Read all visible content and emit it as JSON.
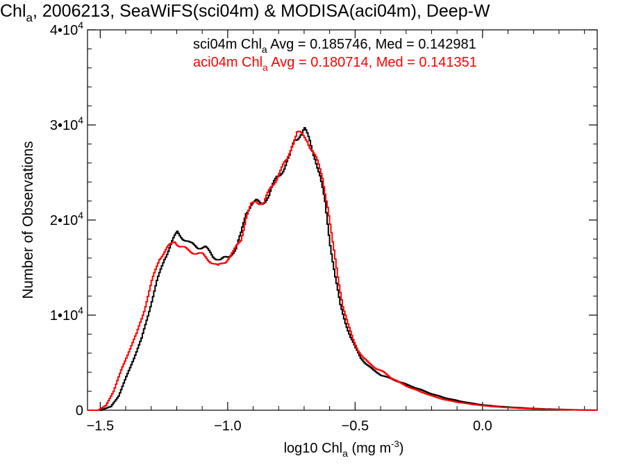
{
  "chart_data": {
    "type": "line",
    "title": {
      "main": "Chl",
      "sub": "a",
      "rest": ", 2006213, SeaWiFS(sci04m) & MODISA(aci04m), Deep-W"
    },
    "xlabel": {
      "main": "log10 Chl",
      "sub": "a",
      "rest": " (mg m",
      "sup": "-3",
      "tail": ")"
    },
    "ylabel": "Number of Observations",
    "xlim": [
      -1.55,
      0.45
    ],
    "ylim": [
      0,
      40000
    ],
    "x_ticks": [
      {
        "value": -1.5,
        "label": "−1.5"
      },
      {
        "value": -1.0,
        "label": "−1.0"
      },
      {
        "value": -0.5,
        "label": "−0.5"
      },
      {
        "value": 0.0,
        "label": "0.0"
      }
    ],
    "y_ticks": [
      {
        "value": 0,
        "mant": "0",
        "exp": ""
      },
      {
        "value": 10000,
        "mant": "1•10",
        "exp": "4"
      },
      {
        "value": 20000,
        "mant": "2•10",
        "exp": "4"
      },
      {
        "value": 30000,
        "mant": "3•10",
        "exp": "4"
      },
      {
        "value": 40000,
        "mant": "4•10",
        "exp": "4"
      }
    ],
    "annotations": [
      {
        "pre": "sci04m Chl",
        "sub": "a",
        "post": " Avg = 0.185746, Med = 0.142981",
        "color": "#000000"
      },
      {
        "pre": "aci04m Chl",
        "sub": "a",
        "post": " Avg = 0.180714, Med = 0.141351",
        "color": "#ff0000"
      }
    ],
    "series": [
      {
        "color": "#000000",
        "points": [
          [
            -1.55,
            0
          ],
          [
            -1.5,
            0
          ],
          [
            -1.46,
            400
          ],
          [
            -1.43,
            1500
          ],
          [
            -1.4,
            3500
          ],
          [
            -1.37,
            5500
          ],
          [
            -1.34,
            7500
          ],
          [
            -1.31,
            10500
          ],
          [
            -1.28,
            13500
          ],
          [
            -1.25,
            16000
          ],
          [
            -1.22,
            17700
          ],
          [
            -1.2,
            18700
          ],
          [
            -1.18,
            18200
          ],
          [
            -1.15,
            17500
          ],
          [
            -1.12,
            17200
          ],
          [
            -1.09,
            17100
          ],
          [
            -1.06,
            16200
          ],
          [
            -1.03,
            15800
          ],
          [
            -1.0,
            16100
          ],
          [
            -0.97,
            17000
          ],
          [
            -0.95,
            18500
          ],
          [
            -0.93,
            20800
          ],
          [
            -0.91,
            21700
          ],
          [
            -0.89,
            21900
          ],
          [
            -0.87,
            21700
          ],
          [
            -0.84,
            22600
          ],
          [
            -0.81,
            24500
          ],
          [
            -0.78,
            25500
          ],
          [
            -0.76,
            26500
          ],
          [
            -0.74,
            28500
          ],
          [
            -0.72,
            29000
          ],
          [
            -0.7,
            29400
          ],
          [
            -0.68,
            28300
          ],
          [
            -0.66,
            26700
          ],
          [
            -0.64,
            24500
          ],
          [
            -0.62,
            21800
          ],
          [
            -0.6,
            17500
          ],
          [
            -0.58,
            14000
          ],
          [
            -0.56,
            11000
          ],
          [
            -0.54,
            9200
          ],
          [
            -0.52,
            7700
          ],
          [
            -0.5,
            6500
          ],
          [
            -0.48,
            5500
          ],
          [
            -0.46,
            4900
          ],
          [
            -0.43,
            4200
          ],
          [
            -0.4,
            3700
          ],
          [
            -0.36,
            3300
          ],
          [
            -0.32,
            2900
          ],
          [
            -0.28,
            2500
          ],
          [
            -0.24,
            2100
          ],
          [
            -0.2,
            1700
          ],
          [
            -0.15,
            1300
          ],
          [
            -0.1,
            1000
          ],
          [
            -0.05,
            750
          ],
          [
            0.0,
            550
          ],
          [
            0.05,
            420
          ],
          [
            0.1,
            330
          ],
          [
            0.15,
            250
          ],
          [
            0.2,
            180
          ],
          [
            0.25,
            130
          ],
          [
            0.3,
            90
          ],
          [
            0.35,
            50
          ],
          [
            0.4,
            20
          ],
          [
            0.45,
            0
          ]
        ]
      },
      {
        "color": "#ff0000",
        "points": [
          [
            -1.55,
            0
          ],
          [
            -1.51,
            0
          ],
          [
            -1.48,
            500
          ],
          [
            -1.45,
            2000
          ],
          [
            -1.42,
            4200
          ],
          [
            -1.39,
            6200
          ],
          [
            -1.36,
            8000
          ],
          [
            -1.33,
            10500
          ],
          [
            -1.3,
            13500
          ],
          [
            -1.27,
            16000
          ],
          [
            -1.24,
            17000
          ],
          [
            -1.21,
            17800
          ],
          [
            -1.19,
            17300
          ],
          [
            -1.16,
            16800
          ],
          [
            -1.13,
            16600
          ],
          [
            -1.1,
            16300
          ],
          [
            -1.07,
            15700
          ],
          [
            -1.04,
            15100
          ],
          [
            -1.01,
            15700
          ],
          [
            -0.98,
            16600
          ],
          [
            -0.95,
            18000
          ],
          [
            -0.93,
            20300
          ],
          [
            -0.91,
            21500
          ],
          [
            -0.89,
            22000
          ],
          [
            -0.86,
            21800
          ],
          [
            -0.83,
            23500
          ],
          [
            -0.8,
            25000
          ],
          [
            -0.77,
            26200
          ],
          [
            -0.75,
            28000
          ],
          [
            -0.73,
            29200
          ],
          [
            -0.71,
            28800
          ],
          [
            -0.69,
            28500
          ],
          [
            -0.67,
            27300
          ],
          [
            -0.65,
            26000
          ],
          [
            -0.63,
            24500
          ],
          [
            -0.61,
            21500
          ],
          [
            -0.59,
            17500
          ],
          [
            -0.57,
            14000
          ],
          [
            -0.55,
            11000
          ],
          [
            -0.53,
            9000
          ],
          [
            -0.51,
            7400
          ],
          [
            -0.49,
            6300
          ],
          [
            -0.47,
            5500
          ],
          [
            -0.45,
            5000
          ],
          [
            -0.42,
            4400
          ],
          [
            -0.39,
            4000
          ],
          [
            -0.36,
            3400
          ],
          [
            -0.32,
            2800
          ],
          [
            -0.28,
            2300
          ],
          [
            -0.24,
            1900
          ],
          [
            -0.2,
            1500
          ],
          [
            -0.15,
            1100
          ],
          [
            -0.1,
            850
          ],
          [
            -0.05,
            650
          ],
          [
            0.0,
            480
          ],
          [
            0.05,
            360
          ],
          [
            0.1,
            270
          ],
          [
            0.15,
            200
          ],
          [
            0.2,
            140
          ],
          [
            0.25,
            100
          ],
          [
            0.3,
            70
          ],
          [
            0.35,
            40
          ],
          [
            0.4,
            15
          ],
          [
            0.45,
            0
          ]
        ]
      }
    ]
  }
}
